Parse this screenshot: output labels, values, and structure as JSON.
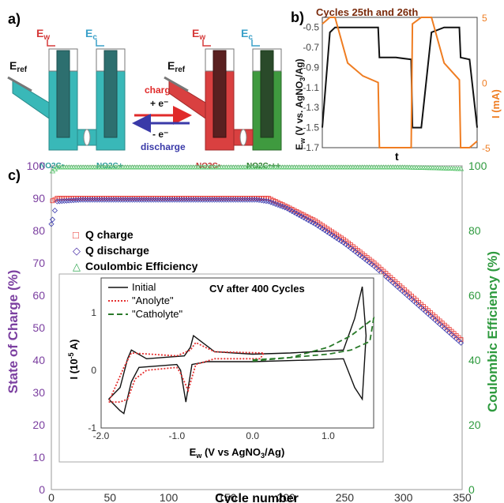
{
  "panel_a": {
    "label": "a)",
    "cell_left": {
      "ew": "E",
      "ew_sub": "w",
      "ec": "E",
      "ec_sub": "c",
      "eref": "E",
      "eref_sub": "ref",
      "species_left": "NO2C•",
      "species_right": "NO2C+"
    },
    "cell_right": {
      "ew": "E",
      "ew_sub": "w",
      "ec": "E",
      "ec_sub": "c",
      "eref": "E",
      "eref_sub": "ref",
      "species_left": "NO2C•",
      "species_right": "NO2C•++"
    },
    "arrow_charge": {
      "label": "charge",
      "electron": "+ e⁻",
      "color": "#e02a2a"
    },
    "arrow_discharge": {
      "label": "discharge",
      "electron": "- e⁻",
      "color": "#3a3aa8"
    },
    "colors": {
      "teal": "#39b8b8",
      "red": "#d94040",
      "green": "#3f9a3f",
      "ew": "#d63a3a",
      "ec": "#3aa0c9"
    }
  },
  "panel_b": {
    "label": "b)",
    "title": "Cycles 25th and 26th",
    "ylabel_left": "E",
    "ylabel_left_sub": "w",
    "ylabel_left_rest": " (V vs. AgNO",
    "ylabel_left_sub2": "3",
    "ylabel_left_end": "/Ag)",
    "ylabel_right": "I (mA)",
    "xlabel": "t",
    "left_ticks": [
      "-0.5",
      "-0.7",
      "-0.9",
      "-1.1",
      "-1.3",
      "-1.5",
      "-1.7"
    ],
    "right_ticks": [
      "5",
      "0",
      "-5"
    ],
    "colors": {
      "voltage": "#111111",
      "current": "#ef7d22",
      "title": "#7a2b0c"
    }
  },
  "panel_c": {
    "label": "c)",
    "xlabel": "Cycle number",
    "ylabel_left": "State of Charge (%)",
    "ylabel_right": "Coulombic Efficiency (%)",
    "left_ticks": [
      "100",
      "90",
      "80",
      "70",
      "60",
      "50",
      "40",
      "30",
      "20",
      "10",
      "0"
    ],
    "right_ticks": [
      "100",
      "80",
      "60",
      "40",
      "20",
      "0"
    ],
    "x_ticks": [
      "0",
      "50",
      "100",
      "150",
      "200",
      "250",
      "300",
      "350"
    ],
    "legend": [
      {
        "symbol": "□",
        "label": "Q charge",
        "color": "#e8342f"
      },
      {
        "symbol": "◇",
        "label": "Q discharge",
        "color": "#4a2fa8"
      },
      {
        "symbol": "△",
        "label": "Coulombic Efficiency",
        "color": "#34a853"
      }
    ],
    "colors": {
      "left_axis": "#7b3fa0",
      "right_axis": "#2e9a3e",
      "charge": "#e8342f",
      "discharge": "#3f3fb0",
      "ce": "#56c46a"
    }
  },
  "inset": {
    "title": "CV after 400 Cycles",
    "xlabel": "E",
    "xlabel_sub": "w",
    "xlabel_rest": " (V vs AgNO",
    "xlabel_sub2": "3",
    "xlabel_end": "/Ag)",
    "ylabel": "I (10",
    "ylabel_sup": "-5",
    "ylabel_end": " A)",
    "x_ticks": [
      "-2.0",
      "-1.0",
      "0.0",
      "1.0"
    ],
    "y_ticks": [
      "1",
      "0",
      "-1"
    ],
    "legend": [
      {
        "label": "Initial",
        "color": "#111111",
        "dash": "none"
      },
      {
        "label": "\"Anolyte\"",
        "color": "#e53030",
        "dash": "dot"
      },
      {
        "label": "\"Catholyte\"",
        "color": "#2a7a2a",
        "dash": "dash"
      }
    ]
  },
  "chart_data": [
    {
      "type": "line",
      "panel": "b",
      "title": "Cycles 25th and 26th",
      "xlabel": "t",
      "ylabel": "Ew (V vs. AgNO3/Ag)",
      "ylabel_right": "I (mA)",
      "ylim": [
        -1.7,
        -0.4
      ],
      "ylim_right": [
        -5,
        5
      ],
      "x": [
        0,
        0.3,
        0.5,
        1.0,
        1.6,
        2.2,
        2.25,
        2.9,
        3.5,
        3.55,
        3.9,
        4.3,
        4.8,
        5.4,
        5.45,
        5.8,
        6.1
      ],
      "series": [
        {
          "name": "",
          "axis": "left",
          "values": [
            -1.5,
            -0.55,
            -0.5,
            -0.5,
            -0.5,
            -0.5,
            -0.8,
            -0.8,
            -0.82,
            -1.5,
            -1.5,
            -0.55,
            -0.5,
            -0.5,
            -0.8,
            -0.82,
            -1.5
          ]
        },
        {
          "name": "",
          "axis": "right",
          "values": [
            4.5,
            5,
            5,
            1.5,
            0.5,
            0,
            -5,
            -5,
            -5,
            4.5,
            5,
            5,
            1.5,
            0.2,
            -5,
            -5,
            -4.5
          ]
        }
      ]
    },
    {
      "type": "scatter",
      "panel": "c",
      "xlabel": "Cycle number",
      "ylabel": "State of Charge (%)",
      "ylabel_right": "Coulombic Efficiency (%)",
      "xlim": [
        0,
        350
      ],
      "ylim": [
        0,
        100
      ],
      "ylim_right": [
        0,
        100
      ],
      "x": [
        0,
        5,
        25,
        50,
        100,
        150,
        175,
        185,
        200,
        225,
        250,
        275,
        300,
        325,
        350
      ],
      "series": [
        {
          "name": "Q charge",
          "values": [
            89,
            90,
            90,
            90,
            90,
            90,
            90,
            90,
            87.5,
            83,
            77,
            70,
            62,
            54,
            46
          ]
        },
        {
          "name": "Q discharge",
          "values": [
            82,
            89,
            89.5,
            89.5,
            89.5,
            89.5,
            89.5,
            89,
            87,
            82,
            76,
            69,
            61,
            53,
            45
          ]
        },
        {
          "name": "Coulombic Efficiency",
          "axis": "right",
          "values": [
            98,
            99.5,
            99.5,
            99.5,
            99.5,
            99.5,
            99.5,
            99.5,
            99.5,
            99.5,
            99.5,
            99.5,
            99.5,
            99.3,
            99
          ]
        }
      ]
    },
    {
      "type": "line",
      "panel": "c-inset",
      "title": "CV after 400 Cycles",
      "xlabel": "Ew (V vs AgNO3/Ag)",
      "ylabel": "I (10-5 A)",
      "xlim": [
        -2.0,
        1.6
      ],
      "ylim": [
        -1,
        1.6
      ],
      "series": [
        {
          "name": "Initial",
          "points": [
            [
              -1.9,
              -0.5
            ],
            [
              -1.75,
              -0.7
            ],
            [
              -1.7,
              -0.75
            ],
            [
              -1.6,
              -0.2
            ],
            [
              -1.5,
              0.05
            ],
            [
              -1.0,
              0.1
            ],
            [
              -0.95,
              0.0
            ],
            [
              -0.88,
              -0.55
            ],
            [
              -0.8,
              0.1
            ],
            [
              -0.6,
              0.15
            ],
            [
              0.0,
              0.15
            ],
            [
              0.8,
              0.18
            ],
            [
              1.2,
              0.2
            ],
            [
              1.35,
              -0.3
            ],
            [
              1.45,
              -0.5
            ],
            [
              1.5,
              0.6
            ],
            [
              1.45,
              1.45
            ],
            [
              1.35,
              0.9
            ],
            [
              1.2,
              0.35
            ],
            [
              0.5,
              0.3
            ],
            [
              0.0,
              0.28
            ],
            [
              -0.5,
              0.32
            ],
            [
              -0.78,
              0.6
            ],
            [
              -0.82,
              0.4
            ],
            [
              -0.9,
              0.25
            ],
            [
              -1.4,
              0.2
            ],
            [
              -1.6,
              0.35
            ],
            [
              -1.65,
              0.2
            ],
            [
              -1.75,
              -0.3
            ],
            [
              -1.9,
              -0.5
            ]
          ]
        },
        {
          "name": "\"Anolyte\"",
          "points": [
            [
              -1.9,
              -0.55
            ],
            [
              -1.75,
              -0.55
            ],
            [
              -1.65,
              -0.5
            ],
            [
              -1.55,
              -0.15
            ],
            [
              -1.4,
              0.0
            ],
            [
              -1.0,
              0.05
            ],
            [
              -0.95,
              -0.05
            ],
            [
              -0.85,
              -0.35
            ],
            [
              -0.75,
              0.1
            ],
            [
              -0.5,
              0.2
            ],
            [
              0.1,
              0.2
            ],
            [
              0.15,
              0.3
            ],
            [
              -0.5,
              0.32
            ],
            [
              -0.75,
              0.48
            ],
            [
              -0.82,
              0.35
            ],
            [
              -1.0,
              0.25
            ],
            [
              -1.6,
              0.3
            ],
            [
              -1.7,
              0.05
            ],
            [
              -1.9,
              -0.55
            ]
          ]
        },
        {
          "name": "\"Catholyte\"",
          "points": [
            [
              0.0,
              0.18
            ],
            [
              0.5,
              0.22
            ],
            [
              1.0,
              0.4
            ],
            [
              1.3,
              0.6
            ],
            [
              1.6,
              0.9
            ],
            [
              1.55,
              0.5
            ],
            [
              1.3,
              0.35
            ],
            [
              1.0,
              0.28
            ],
            [
              0.5,
              0.22
            ],
            [
              0.0,
              0.16
            ]
          ]
        }
      ]
    }
  ]
}
